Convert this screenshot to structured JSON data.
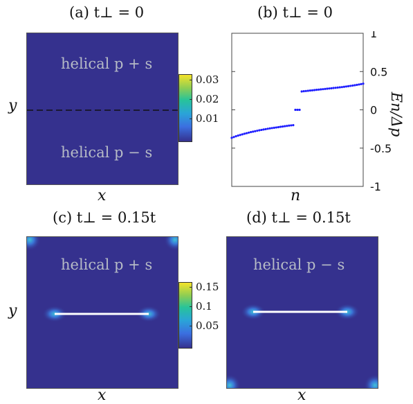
{
  "colors": {
    "background_field": "#35318e",
    "edge_hot": "#f5e32a",
    "point_color": "#1f1fff",
    "region_text": "#b6bbc6"
  },
  "panels": {
    "a": {
      "title": "(a) t⊥ = 0",
      "xlabel": "x",
      "ylabel": "y",
      "upper_region": "helical p + s",
      "lower_region": "helical p − s",
      "colorbar_ticks": [
        "0.03",
        "0.02",
        "0.01"
      ],
      "colorbar_range": [
        0,
        0.035
      ]
    },
    "c": {
      "title": "(c) t⊥ = 0.15t",
      "xlabel": "x",
      "ylabel": "y",
      "region": "helical p + s",
      "colorbar_ticks": [
        "0.15",
        "0.1",
        "0.05"
      ],
      "colorbar_range": [
        0,
        0.17
      ]
    },
    "d": {
      "title": "(d) t⊥ = 0.15t",
      "xlabel": "x",
      "region": "helical p − s"
    }
  },
  "chart_data": {
    "type": "scatter",
    "title": "(b) t⊥ = 0",
    "xlabel": "n",
    "ylabel": "En/Δp",
    "ylim": [
      -1,
      1
    ],
    "yticks": [
      "1",
      "0.5",
      "0",
      "-0.5",
      "-1"
    ],
    "series": [
      {
        "segment": "negative_branch",
        "x": [
          1,
          2,
          3,
          4,
          5,
          6,
          7,
          8,
          9,
          10,
          11,
          12,
          13,
          14,
          15,
          16,
          17,
          18,
          19,
          20,
          21,
          22,
          23,
          24,
          25,
          26,
          27,
          28,
          29,
          30
        ],
        "y": [
          -0.365,
          -0.355,
          -0.345,
          -0.336,
          -0.328,
          -0.32,
          -0.312,
          -0.305,
          -0.298,
          -0.291,
          -0.285,
          -0.279,
          -0.273,
          -0.267,
          -0.262,
          -0.257,
          -0.252,
          -0.247,
          -0.242,
          -0.238,
          -0.234,
          -0.23,
          -0.226,
          -0.222,
          -0.218,
          -0.214,
          -0.21,
          -0.206,
          -0.203,
          -0.2
        ]
      },
      {
        "segment": "zero_modes",
        "x": [
          31,
          32,
          33
        ],
        "y": [
          0.0,
          0.0,
          0.0
        ]
      },
      {
        "segment": "positive_branch",
        "x": [
          34,
          35,
          36,
          37,
          38,
          39,
          40,
          41,
          42,
          43,
          44,
          45,
          46,
          47,
          48,
          49,
          50,
          51,
          52,
          53,
          54,
          55,
          56,
          57,
          58,
          59,
          60,
          61,
          62,
          63
        ],
        "y": [
          0.24,
          0.243,
          0.246,
          0.249,
          0.252,
          0.255,
          0.258,
          0.261,
          0.264,
          0.267,
          0.27,
          0.273,
          0.276,
          0.279,
          0.282,
          0.285,
          0.288,
          0.291,
          0.294,
          0.297,
          0.301,
          0.305,
          0.309,
          0.313,
          0.317,
          0.321,
          0.326,
          0.331,
          0.336,
          0.342
        ]
      }
    ]
  }
}
